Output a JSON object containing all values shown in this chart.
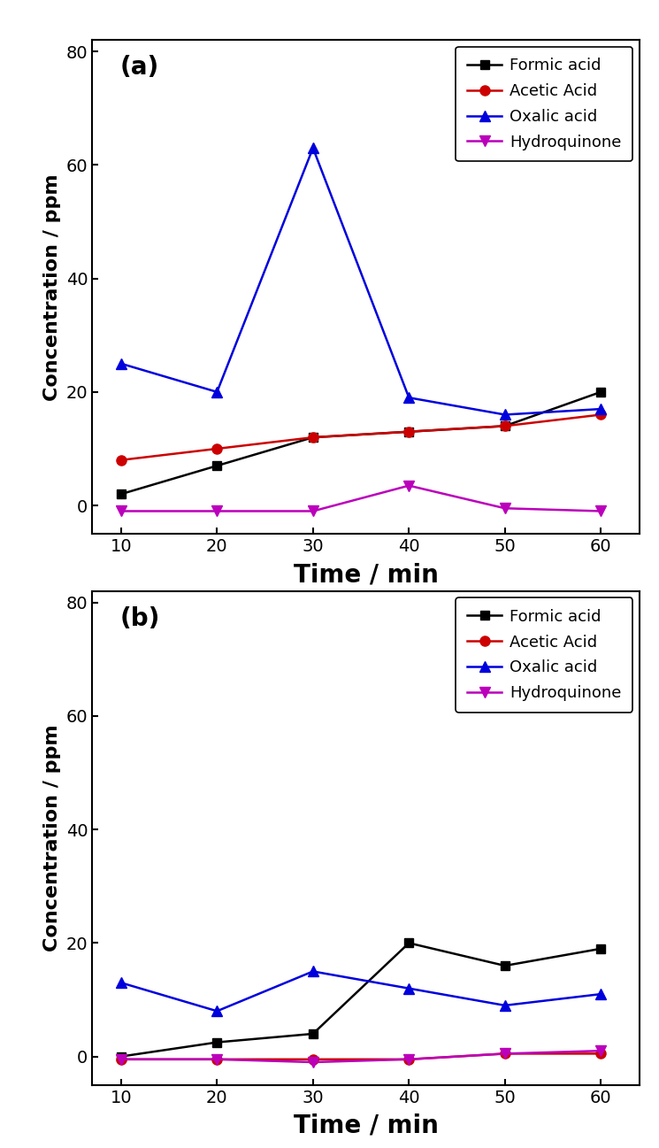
{
  "x": [
    10,
    20,
    30,
    40,
    50,
    60
  ],
  "panel_a": {
    "label": "(a)",
    "formic_acid": [
      2,
      7,
      12,
      13,
      14,
      20
    ],
    "acetic_acid": [
      8,
      10,
      12,
      13,
      14,
      16
    ],
    "oxalic_acid": [
      25,
      20,
      63,
      19,
      16,
      17
    ],
    "hydroquinone": [
      -1,
      -1,
      -1,
      3.5,
      -0.5,
      -1
    ]
  },
  "panel_b": {
    "label": "(b)",
    "formic_acid": [
      0,
      2.5,
      4,
      20,
      16,
      19
    ],
    "acetic_acid": [
      -0.5,
      -0.5,
      -0.5,
      -0.5,
      0.5,
      0.5
    ],
    "oxalic_acid": [
      13,
      8,
      15,
      12,
      9,
      11
    ],
    "hydroquinone": [
      -0.5,
      -0.5,
      -1,
      -0.5,
      0.5,
      1
    ]
  },
  "colors": {
    "formic_acid": "#000000",
    "acetic_acid": "#cc0000",
    "oxalic_acid": "#0000dd",
    "hydroquinone": "#bb00bb"
  },
  "ylabel": "Concentration / ppm",
  "xlabel": "Time / min",
  "ylim": [
    -5,
    82
  ],
  "yticks": [
    0,
    20,
    40,
    60,
    80
  ],
  "xticks": [
    10,
    20,
    30,
    40,
    50,
    60
  ],
  "legend_labels": [
    "Formic acid",
    "Acetic Acid",
    "Oxalic acid",
    "Hydroquinone"
  ],
  "figsize": [
    7.45,
    12.97
  ],
  "dpi": 100
}
